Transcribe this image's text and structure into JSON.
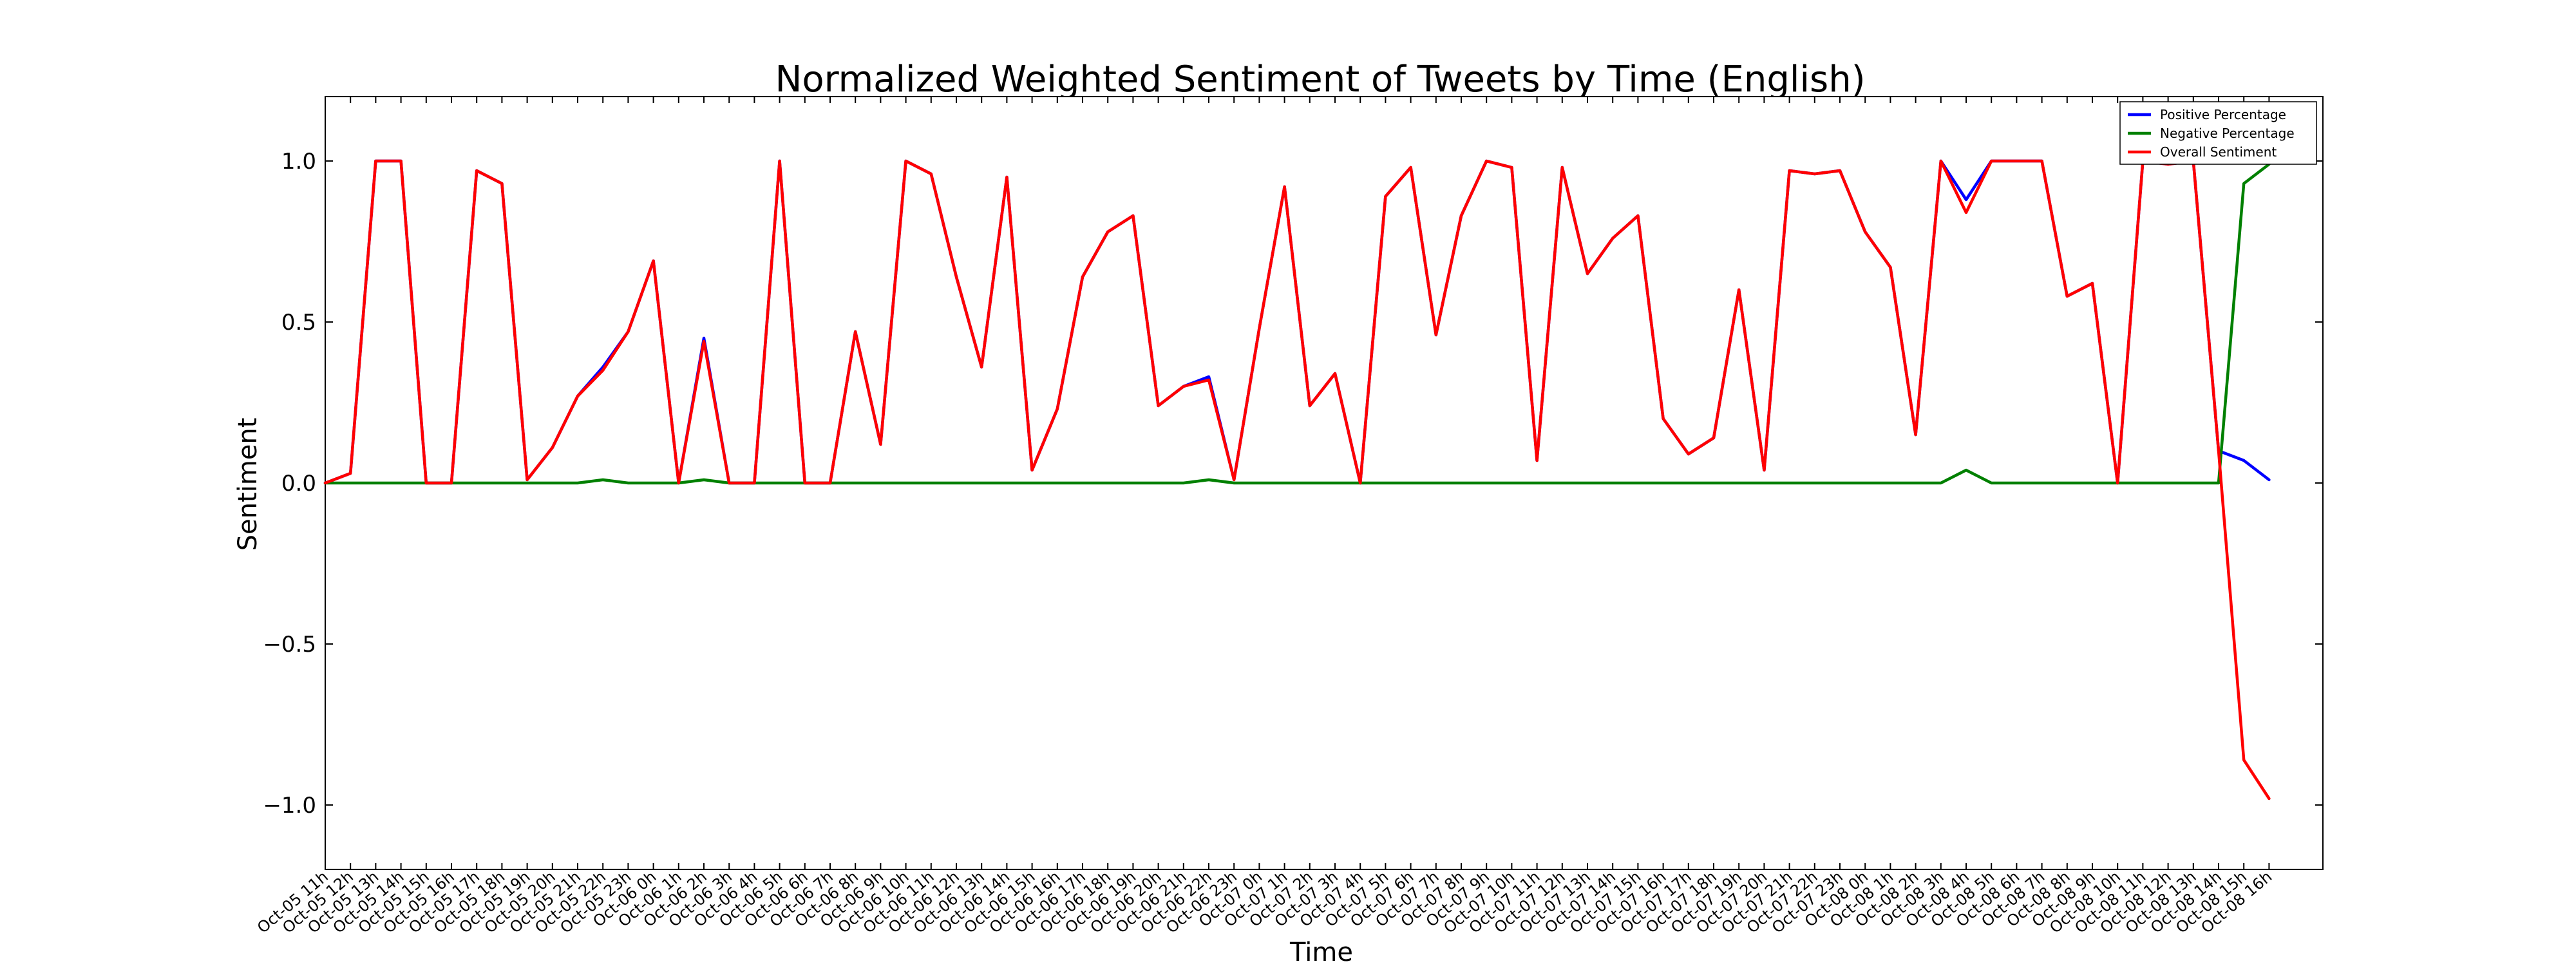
{
  "chart_data": {
    "type": "line",
    "title": "Normalized Weighted Sentiment of Tweets by Time (English)",
    "xlabel": "Time",
    "ylabel": "Sentiment",
    "ylim": [
      -1.2,
      1.2
    ],
    "yticks": [
      1.0,
      0.5,
      0.0,
      -0.5,
      -1.0
    ],
    "ytick_labels": [
      "1.0",
      "0.5",
      "0.0",
      "−0.5",
      "−1.0"
    ],
    "grid": false,
    "legend_position": "top-right",
    "categories": [
      "Oct-05 11h",
      "Oct-05 12h",
      "Oct-05 13h",
      "Oct-05 14h",
      "Oct-05 15h",
      "Oct-05 16h",
      "Oct-05 17h",
      "Oct-05 18h",
      "Oct-05 19h",
      "Oct-05 20h",
      "Oct-05 21h",
      "Oct-05 22h",
      "Oct-05 23h",
      "Oct-06 0h",
      "Oct-06 1h",
      "Oct-06 2h",
      "Oct-06 3h",
      "Oct-06 4h",
      "Oct-06 5h",
      "Oct-06 6h",
      "Oct-06 7h",
      "Oct-06 8h",
      "Oct-06 9h",
      "Oct-06 10h",
      "Oct-06 11h",
      "Oct-06 12h",
      "Oct-06 13h",
      "Oct-06 14h",
      "Oct-06 15h",
      "Oct-06 16h",
      "Oct-06 17h",
      "Oct-06 18h",
      "Oct-06 19h",
      "Oct-06 20h",
      "Oct-06 21h",
      "Oct-06 22h",
      "Oct-06 23h",
      "Oct-07 0h",
      "Oct-07 1h",
      "Oct-07 2h",
      "Oct-07 3h",
      "Oct-07 4h",
      "Oct-07 5h",
      "Oct-07 6h",
      "Oct-07 7h",
      "Oct-07 8h",
      "Oct-07 9h",
      "Oct-07 10h",
      "Oct-07 11h",
      "Oct-07 12h",
      "Oct-07 13h",
      "Oct-07 14h",
      "Oct-07 15h",
      "Oct-07 16h",
      "Oct-07 17h",
      "Oct-07 18h",
      "Oct-07 19h",
      "Oct-07 20h",
      "Oct-07 21h",
      "Oct-07 22h",
      "Oct-07 23h",
      "Oct-08 0h",
      "Oct-08 1h",
      "Oct-08 2h",
      "Oct-08 3h",
      "Oct-08 4h",
      "Oct-08 5h",
      "Oct-08 6h",
      "Oct-08 7h",
      "Oct-08 8h",
      "Oct-08 9h",
      "Oct-08 10h",
      "Oct-08 11h",
      "Oct-08 12h",
      "Oct-08 13h",
      "Oct-08 14h",
      "Oct-08 15h",
      "Oct-08 16h"
    ],
    "series": [
      {
        "name": "Positive Percentage",
        "color": "#0000ff",
        "values": [
          0.0,
          0.03,
          1.0,
          1.0,
          0.0,
          0.0,
          0.97,
          0.93,
          0.01,
          0.11,
          0.27,
          0.36,
          0.47,
          0.69,
          0.0,
          0.45,
          0.0,
          0.0,
          1.0,
          0.0,
          0.0,
          0.47,
          0.12,
          1.0,
          0.96,
          0.64,
          0.36,
          0.95,
          0.04,
          0.23,
          0.64,
          0.78,
          0.83,
          0.24,
          0.3,
          0.33,
          0.01,
          0.48,
          0.92,
          0.24,
          0.34,
          0.0,
          0.89,
          0.98,
          0.46,
          0.83,
          1.0,
          0.98,
          0.07,
          0.98,
          0.65,
          0.76,
          0.83,
          0.2,
          0.09,
          0.14,
          0.6,
          0.04,
          0.97,
          0.96,
          0.97,
          0.78,
          0.67,
          0.15,
          1.0,
          0.88,
          1.0,
          1.0,
          1.0,
          0.58,
          0.62,
          0.0,
          1.0,
          0.99,
          1.0,
          0.1,
          0.07,
          0.01
        ]
      },
      {
        "name": "Negative Percentage",
        "color": "#008000",
        "values": [
          0.0,
          0.0,
          0.0,
          0.0,
          0.0,
          0.0,
          0.0,
          0.0,
          0.0,
          0.0,
          0.0,
          0.01,
          0.0,
          0.0,
          0.0,
          0.01,
          0.0,
          0.0,
          0.0,
          0.0,
          0.0,
          0.0,
          0.0,
          0.0,
          0.0,
          0.0,
          0.0,
          0.0,
          0.0,
          0.0,
          0.0,
          0.0,
          0.0,
          0.0,
          0.0,
          0.01,
          0.0,
          0.0,
          0.0,
          0.0,
          0.0,
          0.0,
          0.0,
          0.0,
          0.0,
          0.0,
          0.0,
          0.0,
          0.0,
          0.0,
          0.0,
          0.0,
          0.0,
          0.0,
          0.0,
          0.0,
          0.0,
          0.0,
          0.0,
          0.0,
          0.0,
          0.0,
          0.0,
          0.0,
          0.0,
          0.04,
          0.0,
          0.0,
          0.0,
          0.0,
          0.0,
          0.0,
          0.0,
          0.0,
          0.0,
          0.0,
          0.93,
          0.99
        ]
      },
      {
        "name": "Overall Sentiment",
        "color": "#ff0000",
        "values": [
          0.0,
          0.03,
          1.0,
          1.0,
          0.0,
          0.0,
          0.97,
          0.93,
          0.01,
          0.11,
          0.27,
          0.35,
          0.47,
          0.69,
          0.0,
          0.44,
          0.0,
          0.0,
          1.0,
          0.0,
          0.0,
          0.47,
          0.12,
          1.0,
          0.96,
          0.64,
          0.36,
          0.95,
          0.04,
          0.23,
          0.64,
          0.78,
          0.83,
          0.24,
          0.3,
          0.32,
          0.01,
          0.48,
          0.92,
          0.24,
          0.34,
          0.0,
          0.89,
          0.98,
          0.46,
          0.83,
          1.0,
          0.98,
          0.07,
          0.98,
          0.65,
          0.76,
          0.83,
          0.2,
          0.09,
          0.14,
          0.6,
          0.04,
          0.97,
          0.96,
          0.97,
          0.78,
          0.67,
          0.15,
          1.0,
          0.84,
          1.0,
          1.0,
          1.0,
          0.58,
          0.62,
          0.0,
          1.0,
          0.99,
          1.0,
          0.1,
          -0.86,
          -0.98
        ]
      }
    ]
  }
}
